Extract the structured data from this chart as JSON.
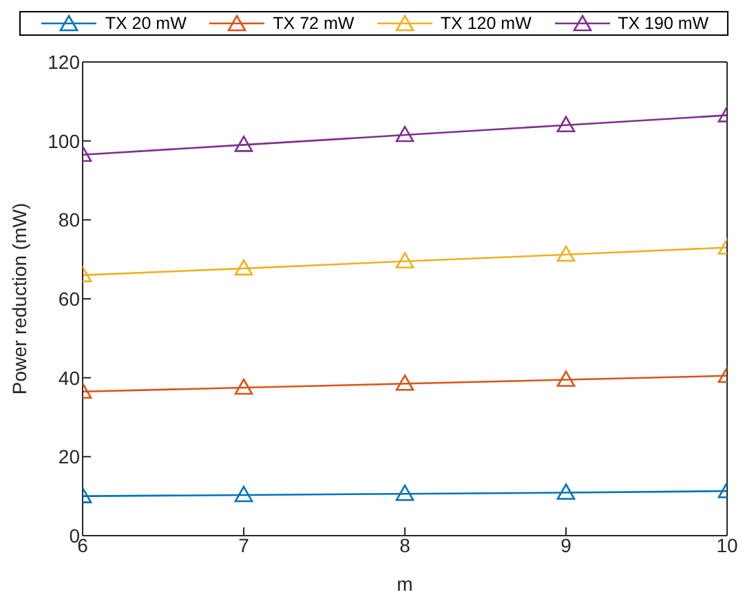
{
  "chart_data": {
    "type": "line",
    "xlabel": "m",
    "ylabel": "Power reduction (mW)",
    "x": [
      6,
      7,
      8,
      9,
      10
    ],
    "xlim": [
      6,
      10
    ],
    "xticks": [
      6,
      7,
      8,
      9,
      10
    ],
    "ylim": [
      0,
      120
    ],
    "yticks": [
      0,
      20,
      40,
      60,
      80,
      100,
      120
    ],
    "grid": false,
    "legend": "top",
    "marker": "triangle",
    "line_style": "solid",
    "series": [
      {
        "name": "TX 20 mW",
        "color": "#0072bd",
        "values": [
          10,
          10.3,
          10.6,
          10.9,
          11.3
        ]
      },
      {
        "name": "TX 72 mW",
        "color": "#d95319",
        "values": [
          36.5,
          37.5,
          38.5,
          39.5,
          40.5
        ]
      },
      {
        "name": "TX 120 mW",
        "color": "#edb120",
        "values": [
          66,
          67.7,
          69.5,
          71.2,
          73
        ]
      },
      {
        "name": "TX 190 mW",
        "color": "#7e2f8e",
        "values": [
          96.5,
          99,
          101.5,
          104,
          106.5
        ]
      }
    ]
  }
}
